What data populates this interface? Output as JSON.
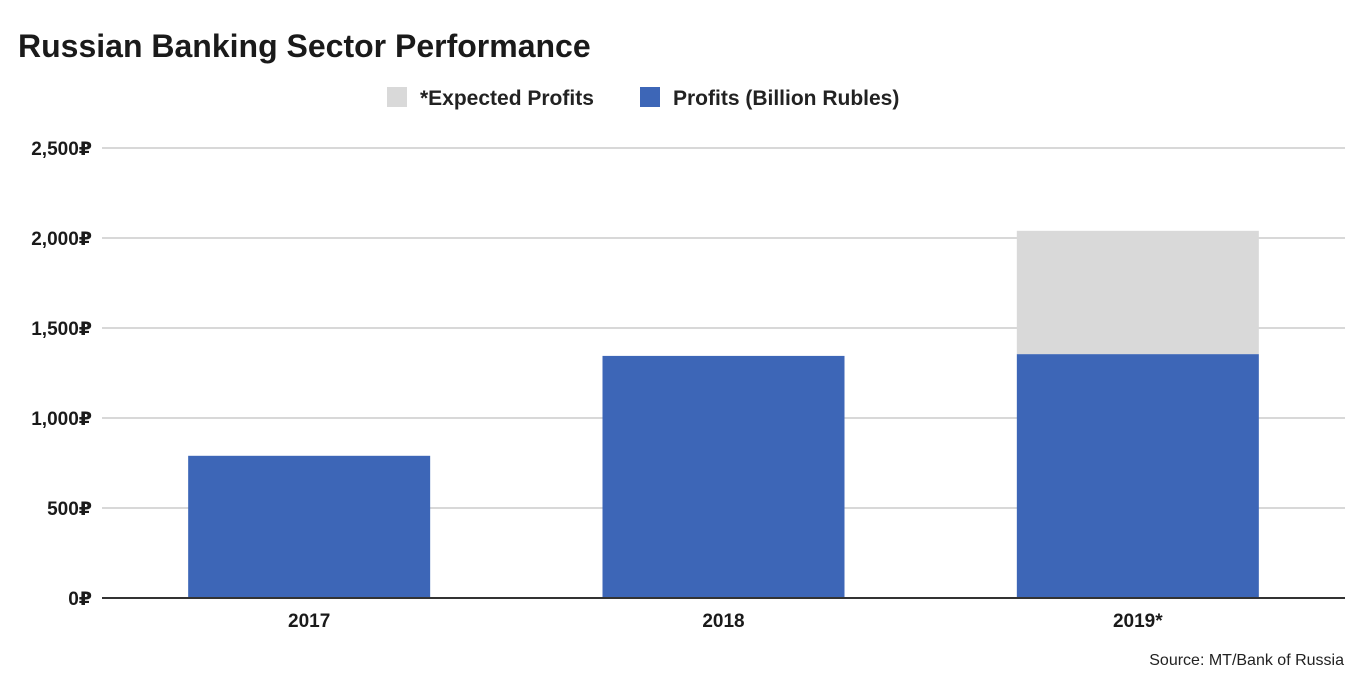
{
  "chart_data": {
    "type": "bar",
    "stacked": true,
    "title": "Russian Banking Sector Performance",
    "categories": [
      "2017",
      "2018",
      "2019*"
    ],
    "series": [
      {
        "name": "Profits (Billion Rubles)",
        "color": "#3d66b7",
        "values": [
          790,
          1345,
          1355
        ]
      },
      {
        "name": "*Expected Profits",
        "color": "#d9d9d9",
        "values": [
          0,
          0,
          685
        ]
      }
    ],
    "legend_order": [
      "*Expected Profits",
      "Profits (Billion Rubles)"
    ],
    "legend_position": "top-center",
    "y_ticks": [
      0,
      500,
      1000,
      1500,
      2000,
      2500
    ],
    "y_tick_labels": [
      "0₽",
      "500₽",
      "1,000₽",
      "1,500₽",
      "2,000₽",
      "2,500₽"
    ],
    "ylim": [
      0,
      2500
    ],
    "grid": true,
    "xlabel": "",
    "ylabel": "",
    "gridline_color": "#cccccc",
    "axis_color": "#333333"
  },
  "source": "Source: MT/Bank of Russia"
}
